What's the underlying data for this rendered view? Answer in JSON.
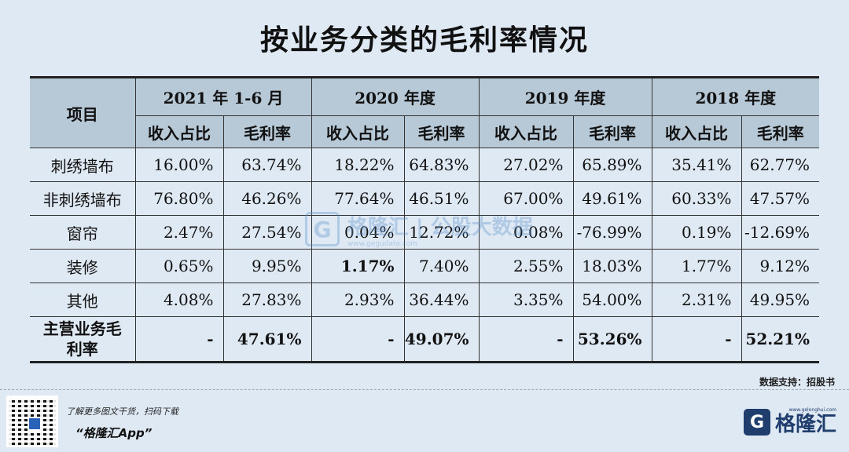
{
  "title": "按业务分类的毛利率情况",
  "table": {
    "corner": "项目",
    "periods": [
      "2021 年 1-6 月",
      "2020 年度",
      "2019 年度",
      "2018 年度"
    ],
    "sub_revenue": "收入占比",
    "sub_margin": "毛利率",
    "rows": [
      {
        "label": "刺绣墙布",
        "v": [
          "16.00%",
          "63.74%",
          "18.22%",
          "64.83%",
          "27.02%",
          "65.89%",
          "35.41%",
          "62.77%"
        ]
      },
      {
        "label": "非刺绣墙布",
        "v": [
          "76.80%",
          "46.26%",
          "77.64%",
          "46.51%",
          "67.00%",
          "49.61%",
          "60.33%",
          "47.57%"
        ]
      },
      {
        "label": "窗帘",
        "v": [
          "2.47%",
          "27.54%",
          "0.04%",
          "12.72%",
          "0.08%",
          "-76.99%",
          "0.19%",
          "-12.69%"
        ]
      },
      {
        "label": "装修",
        "v": [
          "0.65%",
          "9.95%",
          "1.17%",
          "7.40%",
          "2.55%",
          "18.03%",
          "1.77%",
          "9.12%"
        ]
      },
      {
        "label": "其他",
        "v": [
          "4.08%",
          "27.83%",
          "2.93%",
          "36.44%",
          "3.35%",
          "54.00%",
          "2.31%",
          "49.95%"
        ]
      }
    ],
    "total": {
      "label_line1": "主营业务毛",
      "label_line2": "利率",
      "v": [
        "-",
        "47.61%",
        "-",
        "49.07%",
        "-",
        "53.26%",
        "-",
        "52.21%"
      ]
    }
  },
  "watermark": {
    "logo": "G",
    "name": "格隆汇",
    "partner": "| 公股大数据",
    "url": "www.gegudata.com"
  },
  "source": "数据支持：招股书",
  "footer": {
    "promo": "了解更多图文干货，扫码下载",
    "app": "“格隆汇App”",
    "brand_icon": "G",
    "brand_name": "格隆汇",
    "brand_url": "www.gelonghui.com"
  }
}
